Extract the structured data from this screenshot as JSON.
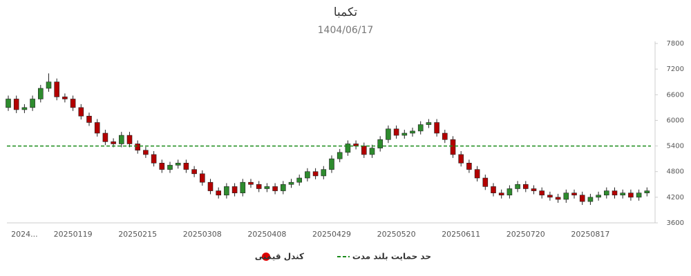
{
  "chart_data": {
    "type": "candlestick",
    "title": "تکمبا",
    "subtitle": "1404/06/17",
    "categories": [
      null,
      null,
      "2024...",
      null,
      null,
      null,
      null,
      null,
      "20250119",
      null,
      null,
      null,
      null,
      null,
      null,
      null,
      "20250215",
      null,
      null,
      null,
      null,
      null,
      null,
      null,
      "20250308",
      null,
      null,
      null,
      null,
      null,
      null,
      null,
      "20250408",
      null,
      null,
      null,
      null,
      null,
      null,
      null,
      "20250429",
      null,
      null,
      null,
      null,
      null,
      null,
      null,
      "20250520",
      null,
      null,
      null,
      null,
      null,
      null,
      null,
      "20250611",
      null,
      null,
      null,
      null,
      null,
      null,
      null,
      "20250720",
      null,
      null,
      null,
      null,
      null,
      null,
      null,
      "20250817",
      null,
      null,
      null,
      null,
      null,
      null,
      null
    ],
    "series": [
      {
        "name": "کندل قیمتی",
        "color": "#e00000",
        "up_color": "#2e8b2e",
        "down_color": "#b30000",
        "open": [
          6300,
          6500,
          6250,
          6300,
          6500,
          6750,
          6900,
          6550,
          6500,
          6300,
          6100,
          5950,
          5700,
          5500,
          5450,
          5650,
          5450,
          5300,
          5200,
          5000,
          4850,
          4950,
          5000,
          4850,
          4750,
          4550,
          4350,
          4250,
          4450,
          4300,
          4550,
          4500,
          4400,
          4450,
          4350,
          4500,
          4550,
          4650,
          4800,
          4700,
          4850,
          5100,
          5250,
          5450,
          5400,
          5200,
          5350,
          5550,
          5800,
          5650,
          5700,
          5750,
          5900,
          5950,
          5700,
          5550,
          5200,
          5000,
          4850,
          4650,
          4450,
          4300,
          4250,
          4400,
          4500,
          4400,
          4350,
          4250,
          4200,
          4150,
          4300,
          4250,
          4100,
          4200,
          4250,
          4350,
          4250,
          4300,
          4200,
          4300
        ],
        "high": [
          6580,
          6580,
          6380,
          6580,
          6830,
          7100,
          6980,
          6630,
          6580,
          6380,
          6180,
          6030,
          5780,
          5580,
          5730,
          5730,
          5530,
          5380,
          5280,
          5080,
          5030,
          5080,
          5080,
          4930,
          4830,
          4630,
          4430,
          4530,
          4530,
          4630,
          4630,
          4580,
          4530,
          4530,
          4580,
          4630,
          4730,
          4880,
          4880,
          4930,
          5180,
          5330,
          5530,
          5530,
          5480,
          5430,
          5630,
          5880,
          5880,
          5780,
          5830,
          5980,
          6030,
          6030,
          5780,
          5630,
          5280,
          5080,
          4930,
          4730,
          4530,
          4380,
          4480,
          4580,
          4580,
          4480,
          4430,
          4330,
          4280,
          4380,
          4380,
          4330,
          4280,
          4330,
          4430,
          4430,
          4380,
          4380,
          4380,
          4430
        ],
        "low": [
          6220,
          6170,
          6170,
          6220,
          6420,
          6670,
          6470,
          6420,
          6220,
          6020,
          5870,
          5620,
          5420,
          5370,
          5370,
          5370,
          5220,
          5120,
          4920,
          4770,
          4770,
          4870,
          4770,
          4670,
          4470,
          4270,
          4170,
          4170,
          4220,
          4220,
          4420,
          4320,
          4320,
          4270,
          4270,
          4420,
          4470,
          4570,
          4620,
          4620,
          4770,
          5020,
          5170,
          5320,
          5120,
          5120,
          5270,
          5470,
          5570,
          5570,
          5620,
          5670,
          5820,
          5620,
          5470,
          5120,
          4920,
          4770,
          4570,
          4370,
          4220,
          4170,
          4170,
          4320,
          4320,
          4270,
          4170,
          4120,
          4070,
          4070,
          4170,
          4020,
          4020,
          4120,
          4170,
          4170,
          4170,
          4120,
          4120,
          4220
        ],
        "close": [
          6500,
          6250,
          6300,
          6500,
          6750,
          6900,
          6550,
          6500,
          6300,
          6100,
          5950,
          5700,
          5500,
          5450,
          5650,
          5450,
          5300,
          5200,
          5000,
          4850,
          4950,
          5000,
          4850,
          4750,
          4550,
          4350,
          4250,
          4450,
          4300,
          4550,
          4500,
          4400,
          4450,
          4350,
          4500,
          4550,
          4650,
          4800,
          4700,
          4850,
          5100,
          5250,
          5450,
          5400,
          5200,
          5350,
          5550,
          5800,
          5650,
          5700,
          5750,
          5900,
          5950,
          5700,
          5550,
          5200,
          5000,
          4850,
          4650,
          4450,
          4300,
          4250,
          4400,
          4500,
          4400,
          4350,
          4250,
          4200,
          4150,
          4300,
          4250,
          4100,
          4200,
          4250,
          4350,
          4250,
          4300,
          4200,
          4300,
          4350
        ]
      }
    ],
    "reference_lines": [
      {
        "name": "حد حمایت بلند مدت",
        "value": 5400,
        "color": "#1a8a1a"
      }
    ],
    "ylim": [
      3600,
      7800
    ],
    "yticks": [
      3600,
      4200,
      4800,
      5400,
      6000,
      6600,
      7200,
      7800
    ]
  }
}
